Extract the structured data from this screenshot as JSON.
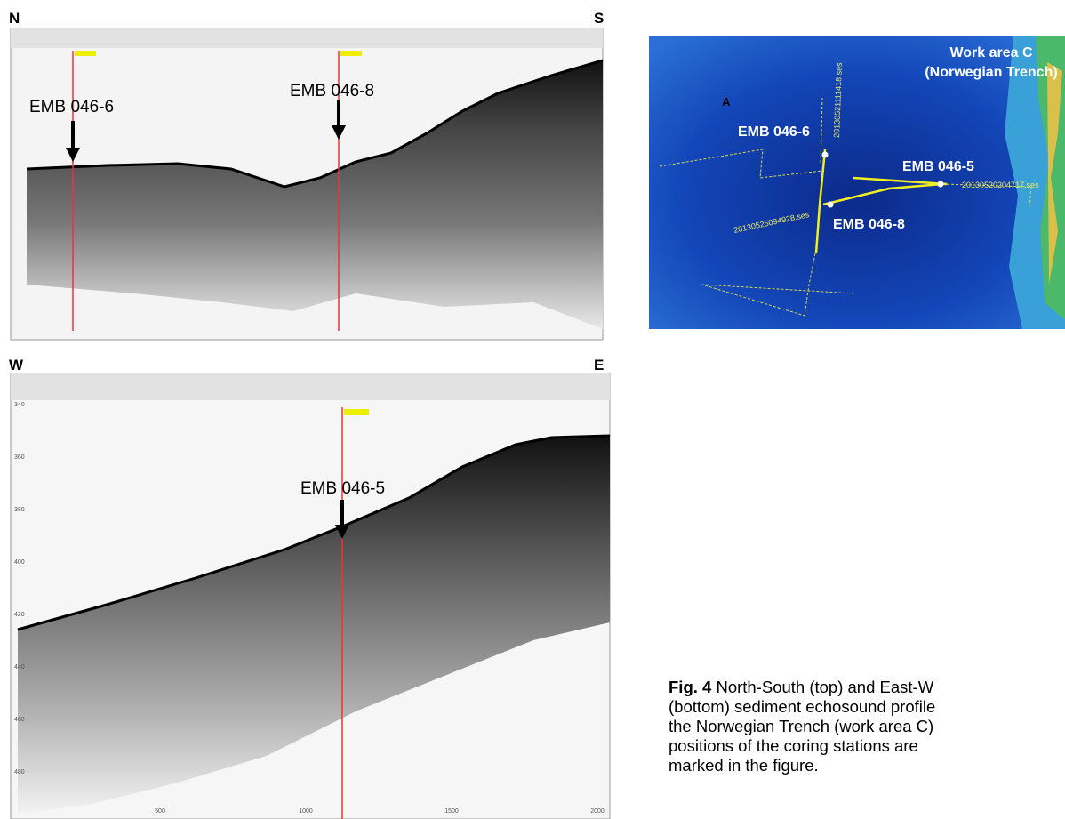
{
  "profile_ns": {
    "left_label": "N",
    "right_label": "S",
    "stations": [
      "EMB 046-6",
      "EMB 046-8"
    ]
  },
  "profile_we": {
    "left_label": "W",
    "right_label": "E",
    "stations": [
      "EMB 046-5"
    ],
    "x_ticks": [
      "500",
      "1000",
      "1500",
      "2000"
    ],
    "y_ticks": [
      "340",
      "360",
      "380",
      "400",
      "420",
      "440",
      "460",
      "480"
    ]
  },
  "map": {
    "title": "Work area C",
    "subtitle": "(Norwegian Trench)",
    "corner_label": "A",
    "stations": [
      "EMB 046-6",
      "EMB 046-5",
      "EMB 046-8"
    ],
    "tracks": [
      "20130521111418.ses",
      "20130520204717.ses",
      "20130525094928.ses"
    ]
  },
  "caption": {
    "label": "Fig. 4",
    "lines": [
      "North-South (top) and East-W",
      "(bottom) sediment echosound profile",
      "the Norwegian Trench (work area C)",
      "positions of the coring stations are",
      "marked in the figure."
    ]
  }
}
